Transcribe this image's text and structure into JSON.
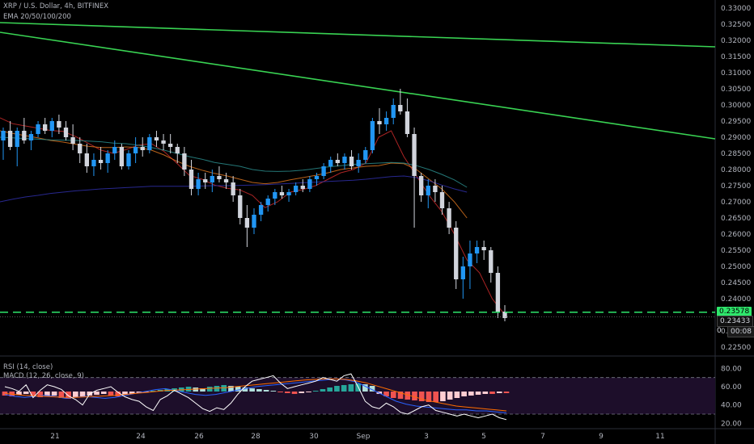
{
  "header": {
    "symbol_line": "XRP / U.S. Dollar, 4h, BITFINEX",
    "ema_legend": "EMA 20/50/100/200",
    "rsi_legend": "RSI (14, close)",
    "macd_legend": "MACD (12, 26, close, 9)"
  },
  "colors": {
    "background": "#000000",
    "candle_up": "#2196f3",
    "candle_down": "#d1d4dc",
    "trendline": "#39d353",
    "support_line": "#2ee66b",
    "ema20": "#c92a2a",
    "ema50": "#d9731f",
    "ema100": "#2a8c8c",
    "ema200": "#2f2fa8",
    "rsi_line": "#ffffff",
    "macd_line": "#2962ff",
    "signal_line": "#ff6d00",
    "hist_pos": "#26a69a",
    "hist_neg": "#ef5350"
  },
  "price_labels": {
    "last_price": "0.23578",
    "current": "0.23433",
    "countdown_prefix": "0",
    "countdown": "00:08"
  },
  "chart_data": [
    {
      "type": "candlestick",
      "title": "XRP / U.S. Dollar, 4h, BITFINEX",
      "y_ticks": [
        "0.33000",
        "0.32500",
        "0.32000",
        "0.31500",
        "0.31000",
        "0.30500",
        "0.30000",
        "0.29500",
        "0.29000",
        "0.28500",
        "0.28000",
        "0.27500",
        "0.27000",
        "0.26500",
        "0.26000",
        "0.25500",
        "0.25000",
        "0.24500",
        "0.24000",
        "0.23500",
        "0.23000",
        "0.22500"
      ],
      "ylim": [
        0.2225,
        0.3325
      ],
      "x_ticks": [
        "21",
        "24",
        "26",
        "28",
        "30",
        "Sep",
        "3",
        "5",
        "7",
        "9",
        "11"
      ],
      "candles": [
        [
          0.289,
          0.293,
          0.283,
          0.292
        ],
        [
          0.292,
          0.295,
          0.286,
          0.287
        ],
        [
          0.287,
          0.293,
          0.281,
          0.292
        ],
        [
          0.292,
          0.296,
          0.288,
          0.289
        ],
        [
          0.289,
          0.292,
          0.286,
          0.291
        ],
        [
          0.291,
          0.295,
          0.29,
          0.294
        ],
        [
          0.294,
          0.296,
          0.291,
          0.292
        ],
        [
          0.292,
          0.296,
          0.29,
          0.295
        ],
        [
          0.295,
          0.297,
          0.291,
          0.293
        ],
        [
          0.293,
          0.295,
          0.289,
          0.29
        ],
        [
          0.29,
          0.294,
          0.286,
          0.288
        ],
        [
          0.288,
          0.29,
          0.282,
          0.285
        ],
        [
          0.285,
          0.288,
          0.279,
          0.281
        ],
        [
          0.281,
          0.285,
          0.278,
          0.283
        ],
        [
          0.283,
          0.287,
          0.28,
          0.282
        ],
        [
          0.282,
          0.286,
          0.279,
          0.285
        ],
        [
          0.285,
          0.289,
          0.283,
          0.287
        ],
        [
          0.287,
          0.288,
          0.28,
          0.281
        ],
        [
          0.281,
          0.286,
          0.28,
          0.285
        ],
        [
          0.285,
          0.29,
          0.282,
          0.287
        ],
        [
          0.287,
          0.29,
          0.284,
          0.286
        ],
        [
          0.286,
          0.291,
          0.285,
          0.29
        ],
        [
          0.29,
          0.292,
          0.287,
          0.289
        ],
        [
          0.289,
          0.291,
          0.286,
          0.288
        ],
        [
          0.288,
          0.291,
          0.285,
          0.287
        ],
        [
          0.287,
          0.288,
          0.282,
          0.285
        ],
        [
          0.285,
          0.287,
          0.278,
          0.28
        ],
        [
          0.28,
          0.283,
          0.272,
          0.274
        ],
        [
          0.274,
          0.279,
          0.272,
          0.277
        ],
        [
          0.277,
          0.279,
          0.274,
          0.276
        ],
        [
          0.276,
          0.28,
          0.273,
          0.278
        ],
        [
          0.278,
          0.281,
          0.276,
          0.277
        ],
        [
          0.277,
          0.279,
          0.274,
          0.276
        ],
        [
          0.276,
          0.278,
          0.27,
          0.272
        ],
        [
          0.272,
          0.274,
          0.263,
          0.265
        ],
        [
          0.265,
          0.269,
          0.256,
          0.262
        ],
        [
          0.262,
          0.268,
          0.26,
          0.266
        ],
        [
          0.266,
          0.27,
          0.264,
          0.269
        ],
        [
          0.269,
          0.272,
          0.267,
          0.271
        ],
        [
          0.271,
          0.274,
          0.269,
          0.273
        ],
        [
          0.273,
          0.275,
          0.271,
          0.272
        ],
        [
          0.272,
          0.274,
          0.27,
          0.273
        ],
        [
          0.273,
          0.276,
          0.272,
          0.275
        ],
        [
          0.275,
          0.277,
          0.273,
          0.274
        ],
        [
          0.274,
          0.278,
          0.273,
          0.277
        ],
        [
          0.277,
          0.279,
          0.275,
          0.278
        ],
        [
          0.278,
          0.282,
          0.277,
          0.281
        ],
        [
          0.281,
          0.284,
          0.279,
          0.283
        ],
        [
          0.283,
          0.285,
          0.281,
          0.282
        ],
        [
          0.282,
          0.285,
          0.28,
          0.284
        ],
        [
          0.284,
          0.286,
          0.28,
          0.281
        ],
        [
          0.281,
          0.285,
          0.279,
          0.283
        ],
        [
          0.283,
          0.287,
          0.282,
          0.286
        ],
        [
          0.286,
          0.296,
          0.285,
          0.295
        ],
        [
          0.295,
          0.299,
          0.291,
          0.294
        ],
        [
          0.294,
          0.298,
          0.292,
          0.296
        ],
        [
          0.296,
          0.302,
          0.294,
          0.3
        ],
        [
          0.3,
          0.305,
          0.297,
          0.298
        ],
        [
          0.298,
          0.302,
          0.29,
          0.291
        ],
        [
          0.291,
          0.293,
          0.262,
          0.278
        ],
        [
          0.278,
          0.279,
          0.27,
          0.272
        ],
        [
          0.272,
          0.277,
          0.268,
          0.275
        ],
        [
          0.275,
          0.277,
          0.27,
          0.273
        ],
        [
          0.273,
          0.275,
          0.266,
          0.268
        ],
        [
          0.268,
          0.27,
          0.26,
          0.262
        ],
        [
          0.262,
          0.264,
          0.243,
          0.246
        ],
        [
          0.246,
          0.253,
          0.24,
          0.25
        ],
        [
          0.25,
          0.258,
          0.243,
          0.254
        ],
        [
          0.254,
          0.258,
          0.251,
          0.256
        ],
        [
          0.256,
          0.258,
          0.252,
          0.255
        ],
        [
          0.255,
          0.256,
          0.245,
          0.248
        ],
        [
          0.248,
          0.25,
          0.234,
          0.236
        ],
        [
          0.236,
          0.238,
          0.233,
          0.234
        ]
      ],
      "ema_lines": [
        {
          "name": "EMA 20",
          "values": [
            0.296,
            0.2942,
            0.2935,
            0.2928,
            0.2921,
            0.2918,
            0.2902,
            0.2881,
            0.286,
            0.285,
            0.2862,
            0.2876,
            0.288,
            0.2856,
            0.282,
            0.2782,
            0.277,
            0.2752,
            0.2742,
            0.2737,
            0.272,
            0.2682,
            0.27,
            0.273,
            0.2738,
            0.275,
            0.277,
            0.279,
            0.28,
            0.282,
            0.29,
            0.292,
            0.284,
            0.278,
            0.272,
            0.267,
            0.26,
            0.252,
            0.248,
            0.24,
            0.235
          ]
        },
        {
          "name": "EMA 50",
          "values": [
            0.292,
            0.2912,
            0.2905,
            0.2898,
            0.289,
            0.2885,
            0.2878,
            0.2872,
            0.2868,
            0.2868,
            0.287,
            0.2868,
            0.286,
            0.2845,
            0.2826,
            0.281,
            0.2798,
            0.2788,
            0.278,
            0.277,
            0.276,
            0.2756,
            0.276,
            0.2768,
            0.2775,
            0.2782,
            0.279,
            0.28,
            0.2805,
            0.281,
            0.2812,
            0.282,
            0.2818,
            0.28,
            0.277,
            0.274,
            0.27,
            0.265,
            null,
            null,
            null
          ]
        },
        {
          "name": "EMA 100",
          "values": [
            0.29,
            0.2898,
            0.2896,
            0.2894,
            0.2892,
            0.2891,
            0.289,
            0.2888,
            0.2886,
            0.2882,
            0.288,
            0.2875,
            0.2868,
            0.286,
            0.285,
            0.284,
            0.2832,
            0.2822,
            0.2816,
            0.281,
            0.28,
            0.2795,
            0.2794,
            0.2795,
            0.2798,
            0.2803,
            0.2808,
            0.2812,
            0.2816,
            0.2818,
            0.282,
            0.2822,
            0.282,
            0.2812,
            0.28,
            0.2785,
            0.2768,
            0.2745,
            null,
            null,
            null
          ]
        },
        {
          "name": "EMA 200",
          "values": [
            0.27,
            0.2708,
            0.2715,
            0.272,
            0.2726,
            0.273,
            0.2734,
            0.2737,
            0.274,
            0.2742,
            0.2744,
            0.2746,
            0.2748,
            0.2748,
            0.2748,
            0.2748,
            0.2749,
            0.275,
            0.275,
            0.2751,
            0.2752,
            0.2753,
            0.2755,
            0.2757,
            0.2759,
            0.2761,
            0.2763,
            0.2765,
            0.2767,
            0.277,
            0.2774,
            0.2778,
            0.278,
            0.2775,
            0.2765,
            0.2752,
            0.274,
            0.273,
            null,
            null,
            null
          ]
        }
      ],
      "trendlines": [
        {
          "from": [
            0,
            0.3255
          ],
          "to": [
            1,
            0.318
          ]
        },
        {
          "from": [
            0,
            0.3225
          ],
          "to": [
            1,
            0.2895
          ]
        }
      ],
      "support_level": 0.2358
    },
    {
      "type": "line",
      "title": "RSI (14, close)",
      "y_ticks": [
        "80.00",
        "60.00",
        "40.00",
        "20.00"
      ],
      "ylim": [
        15,
        90
      ],
      "bands": [
        70,
        30
      ],
      "rsi": [
        60,
        58,
        55,
        62,
        48,
        56,
        62,
        60,
        57,
        50,
        46,
        40,
        52,
        56,
        58,
        60,
        54,
        49,
        46,
        44,
        38,
        34,
        46,
        50,
        56,
        52,
        48,
        42,
        36,
        33,
        37,
        35,
        42,
        52,
        60,
        66,
        68,
        70,
        72,
        64,
        58,
        60,
        62,
        64,
        66,
        70,
        68,
        66,
        72,
        74,
        60,
        44,
        38,
        36,
        42,
        38,
        32,
        30,
        34,
        38,
        40,
        34,
        32,
        30,
        28,
        30,
        28,
        26,
        28,
        30,
        26,
        24
      ]
    },
    {
      "type": "bar",
      "title": "MACD (12, 26, close, 9)",
      "histogram": [
        -0.5,
        -0.6,
        -0.4,
        -0.3,
        -0.5,
        -0.7,
        -0.6,
        -0.5,
        -0.8,
        -0.9,
        -0.7,
        -0.6,
        -0.5,
        -0.4,
        -0.3,
        -0.5,
        -0.6,
        -0.4,
        -0.3,
        -0.2,
        -0.1,
        0.1,
        0.2,
        0.3,
        0.4,
        0.5,
        0.6,
        0.5,
        0.4,
        0.6,
        0.7,
        0.8,
        0.7,
        0.6,
        0.5,
        0.4,
        0.3,
        0.2,
        0.1,
        -0.1,
        -0.2,
        -0.3,
        -0.2,
        -0.1,
        0.1,
        0.3,
        0.5,
        0.7,
        0.8,
        0.9,
        1.0,
        0.9,
        0.7,
        -0.3,
        -0.6,
        -0.8,
        -0.9,
        -1.0,
        -1.1,
        -1.2,
        -1.3,
        -1.3,
        -1.2,
        -1.0,
        -0.8,
        -0.6,
        -0.5,
        -0.4,
        -0.3,
        -0.3,
        -0.2,
        -0.2
      ],
      "macd": [
        -0.3,
        -0.5,
        -0.6,
        -0.5,
        -0.4,
        -0.5,
        -0.7,
        -0.6,
        -0.5,
        -0.6,
        -0.7,
        -0.6,
        -0.4,
        -0.2,
        0.0,
        0.2,
        0.3,
        0.1,
        -0.1,
        -0.3,
        -0.4,
        -0.3,
        -0.1,
        0.1,
        0.3,
        0.5,
        0.6,
        0.7,
        0.8,
        0.9,
        1.0,
        1.1,
        1.2,
        1.3,
        1.2,
        1.0,
        0.5,
        0.0,
        -0.5,
        -1.0,
        -1.3,
        -1.5,
        -1.6,
        -1.7,
        -1.8,
        -1.9,
        -1.9,
        -2.0,
        -2.0,
        -2.1,
        -2.2
      ],
      "signal": [
        -0.2,
        -0.3,
        -0.4,
        -0.45,
        -0.5,
        -0.55,
        -0.6,
        -0.6,
        -0.55,
        -0.5,
        -0.45,
        -0.4,
        -0.3,
        -0.2,
        -0.1,
        0.0,
        0.1,
        0.15,
        0.2,
        0.25,
        0.3,
        0.35,
        0.4,
        0.5,
        0.6,
        0.7,
        0.8,
        0.9,
        1.0,
        1.1,
        1.2,
        1.25,
        1.3,
        1.3,
        1.25,
        1.1,
        0.9,
        0.6,
        0.3,
        0.0,
        -0.3,
        -0.6,
        -0.9,
        -1.1,
        -1.3,
        -1.5,
        -1.6,
        -1.7,
        -1.8,
        -1.9,
        -2.0
      ]
    }
  ]
}
